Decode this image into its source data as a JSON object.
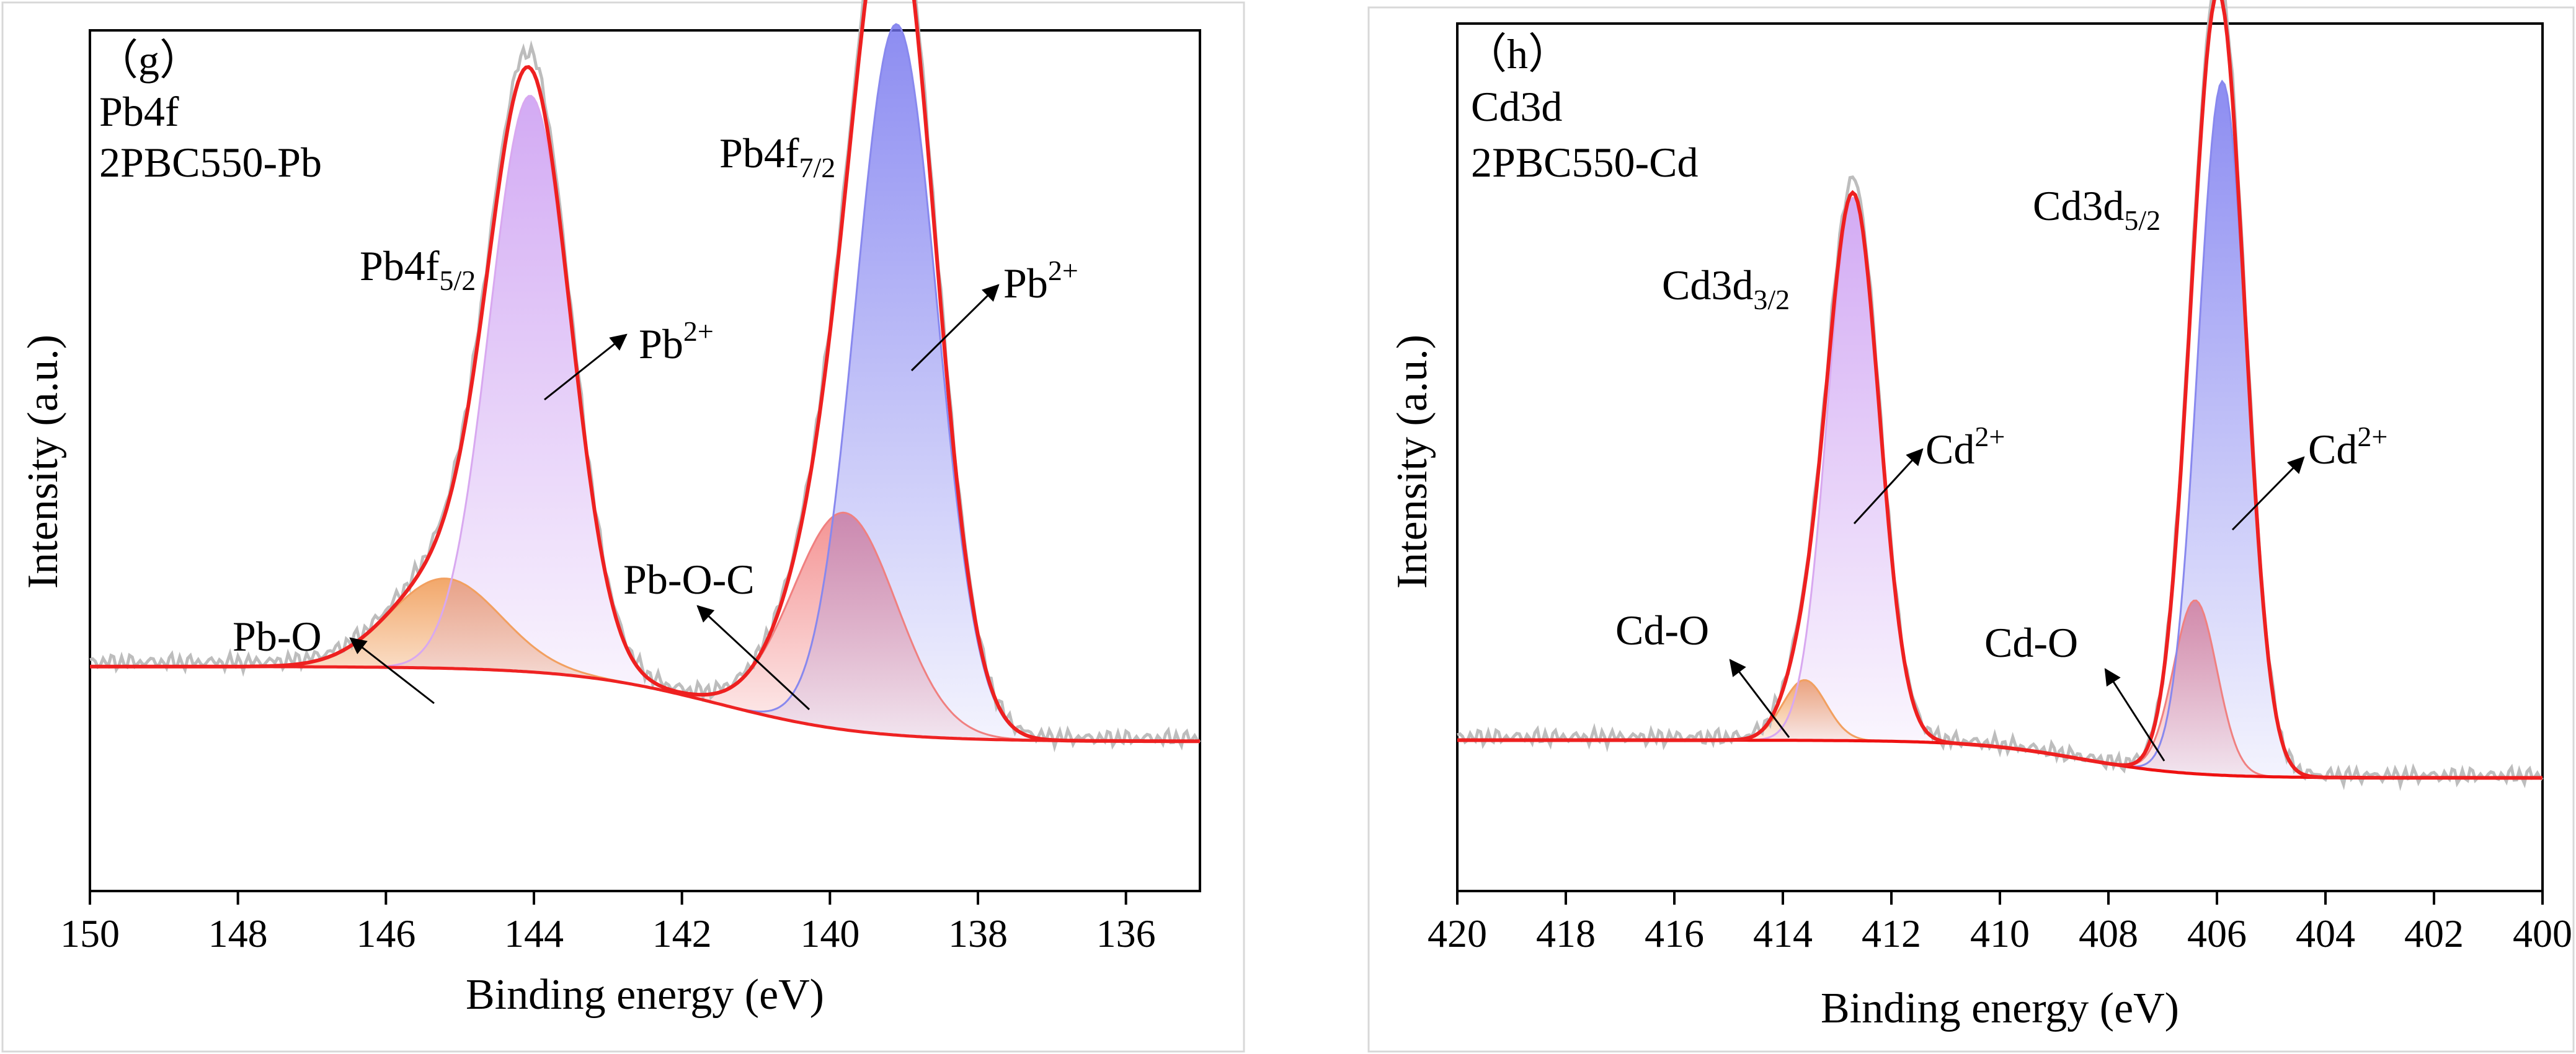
{
  "chart_data": [
    {
      "type": "line",
      "panel_label": "（g）",
      "title_lines": [
        "Pb4f",
        "2PBC550-Pb"
      ],
      "xlabel": "Binding energy (eV)",
      "ylabel": "Intensity (a.u.)",
      "xlim": [
        150,
        135
      ],
      "ylim": [
        0,
        1.15
      ],
      "xticks": [
        150,
        148,
        146,
        144,
        142,
        140,
        138,
        136
      ],
      "x_reversed": true,
      "background": {
        "start": 0.3,
        "end": 0.2,
        "center": 141.5,
        "width": 1.0,
        "color": "#ee2222"
      },
      "components": [
        {
          "name": "Pb-O",
          "center": 145.2,
          "height": 0.12,
          "sigma": 0.75,
          "color": "#f2a060"
        },
        {
          "name": "Pb2+ (Pb4f5/2)",
          "center": 144.05,
          "height": 0.77,
          "sigma": 0.55,
          "color": "#d8a8f0"
        },
        {
          "name": "Pb-O-C",
          "center": 139.8,
          "height": 0.29,
          "sigma": 0.7,
          "color": "#f08080"
        },
        {
          "name": "Pb2+ (Pb4f7/2)",
          "center": 139.1,
          "height": 0.95,
          "sigma": 0.55,
          "color": "#8888ee"
        }
      ],
      "annotations": [
        {
          "main": "Pb4f",
          "sub": "5/2",
          "sup": ""
        },
        {
          "main": "Pb4f",
          "sub": "7/2",
          "sup": ""
        },
        {
          "main": "Pb",
          "sub": "",
          "sup": "2+"
        },
        {
          "main": "Pb",
          "sub": "",
          "sup": "2+"
        },
        {
          "main": "Pb-O",
          "sub": "",
          "sup": ""
        },
        {
          "main": "Pb-O-C",
          "sub": "",
          "sup": ""
        }
      ]
    },
    {
      "type": "line",
      "panel_label": "（h）",
      "title_lines": [
        "Cd3d",
        "2PBC550-Cd"
      ],
      "xlabel": "Binding energy (eV)",
      "ylabel": "Intensity (a.u.)",
      "xlim": [
        420,
        400
      ],
      "ylim": [
        0,
        1.15
      ],
      "xticks": [
        420,
        418,
        416,
        414,
        412,
        410,
        408,
        406,
        404,
        402,
        400
      ],
      "x_reversed": true,
      "background": {
        "start": 0.2,
        "end": 0.15,
        "center": 408.5,
        "width": 1.0,
        "color": "#ee1111"
      },
      "components": [
        {
          "name": "Cd-O (3d3/2)",
          "center": 413.6,
          "height": 0.08,
          "sigma": 0.4,
          "color": "#f2a060"
        },
        {
          "name": "Cd2+ (Cd3d3/2)",
          "center": 412.7,
          "height": 0.72,
          "sigma": 0.48,
          "color": "#d8a8f0"
        },
        {
          "name": "Cd-O (3d5/2)",
          "center": 406.4,
          "height": 0.23,
          "sigma": 0.4,
          "color": "#f08080"
        },
        {
          "name": "Cd2+ (Cd3d5/2)",
          "center": 405.9,
          "height": 0.92,
          "sigma": 0.45,
          "color": "#8888ee"
        }
      ],
      "annotations": [
        {
          "main": "Cd3d",
          "sub": "3/2",
          "sup": ""
        },
        {
          "main": "Cd3d",
          "sub": "5/2",
          "sup": ""
        },
        {
          "main": "Cd",
          "sub": "",
          "sup": "2+"
        },
        {
          "main": "Cd",
          "sub": "",
          "sup": "2+"
        },
        {
          "main": "Cd-O",
          "sub": "",
          "sup": ""
        },
        {
          "main": "Cd-O",
          "sub": "",
          "sup": ""
        }
      ]
    }
  ]
}
